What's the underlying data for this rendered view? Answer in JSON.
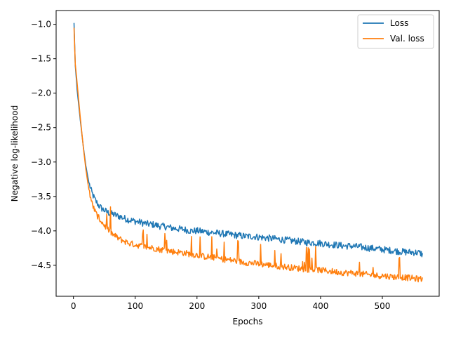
{
  "chart_data": {
    "type": "line",
    "xlabel": "Epochs",
    "ylabel": "Negative log-likelihood",
    "xlim": [
      -28,
      592
    ],
    "ylim": [
      -4.95,
      -0.8
    ],
    "xticks": [
      0,
      100,
      200,
      300,
      400,
      500
    ],
    "yticks": [
      -1.0,
      -1.5,
      -2.0,
      -2.5,
      -3.0,
      -3.5,
      -4.0,
      -4.5
    ],
    "ytick_labels": [
      "−1.0",
      "−1.5",
      "−2.0",
      "−2.5",
      "−3.0",
      "−3.5",
      "−4.0",
      "−4.5"
    ],
    "legend_position": "top-right",
    "grid": false,
    "series": [
      {
        "name": "Loss",
        "color": "#1f77b4",
        "x": [
          1,
          3,
          6,
          10,
          15,
          20,
          25,
          30,
          35,
          40,
          45,
          50,
          55,
          60,
          65,
          70,
          75,
          80,
          90,
          100,
          110,
          120,
          130,
          140,
          150,
          160,
          170,
          180,
          190,
          200,
          210,
          220,
          230,
          240,
          250,
          260,
          270,
          280,
          290,
          300,
          310,
          320,
          330,
          340,
          350,
          360,
          370,
          380,
          390,
          400,
          410,
          420,
          430,
          440,
          450,
          460,
          470,
          480,
          490,
          500,
          510,
          520,
          530,
          540,
          550,
          560,
          565
        ],
        "y": [
          -0.98,
          -1.6,
          -1.95,
          -2.3,
          -2.7,
          -3.05,
          -3.3,
          -3.45,
          -3.55,
          -3.62,
          -3.67,
          -3.7,
          -3.73,
          -3.75,
          -3.76,
          -3.78,
          -3.79,
          -3.81,
          -3.84,
          -3.86,
          -3.88,
          -3.9,
          -3.91,
          -3.93,
          -3.94,
          -3.96,
          -3.97,
          -3.98,
          -4.0,
          -4.0,
          -4.01,
          -4.02,
          -4.03,
          -4.04,
          -4.05,
          -4.06,
          -4.07,
          -4.08,
          -4.08,
          -4.09,
          -4.1,
          -4.11,
          -4.12,
          -4.13,
          -4.14,
          -4.15,
          -4.16,
          -4.17,
          -4.17,
          -4.18,
          -4.19,
          -4.2,
          -4.21,
          -4.22,
          -4.22,
          -4.23,
          -4.24,
          -4.25,
          -4.26,
          -4.27,
          -4.28,
          -4.29,
          -4.3,
          -4.31,
          -4.31,
          -4.32,
          -4.34
        ]
      },
      {
        "name": "Val. loss",
        "color": "#ff7f0e",
        "x": [
          1,
          3,
          6,
          10,
          15,
          20,
          25,
          30,
          35,
          40,
          45,
          50,
          55,
          60,
          65,
          70,
          75,
          80,
          90,
          100,
          110,
          120,
          130,
          140,
          150,
          160,
          170,
          180,
          190,
          200,
          210,
          220,
          230,
          240,
          250,
          260,
          270,
          280,
          290,
          300,
          310,
          320,
          330,
          340,
          350,
          360,
          370,
          380,
          390,
          400,
          410,
          420,
          430,
          440,
          450,
          460,
          470,
          480,
          490,
          500,
          510,
          520,
          530,
          540,
          550,
          560,
          565
        ],
        "y": [
          -1.05,
          -1.58,
          -1.85,
          -2.25,
          -2.7,
          -3.1,
          -3.4,
          -3.6,
          -3.72,
          -3.8,
          -3.86,
          -3.92,
          -3.97,
          -4.02,
          -4.06,
          -4.09,
          -4.12,
          -4.14,
          -4.18,
          -4.2,
          -4.22,
          -4.24,
          -4.25,
          -4.27,
          -4.28,
          -4.3,
          -4.31,
          -4.32,
          -4.34,
          -4.35,
          -4.37,
          -4.38,
          -4.39,
          -4.41,
          -4.42,
          -4.43,
          -4.45,
          -4.46,
          -4.47,
          -4.48,
          -4.49,
          -4.5,
          -4.51,
          -4.52,
          -4.53,
          -4.54,
          -4.55,
          -4.56,
          -4.56,
          -4.57,
          -4.58,
          -4.59,
          -4.6,
          -4.61,
          -4.61,
          -4.62,
          -4.63,
          -4.64,
          -4.65,
          -4.65,
          -4.66,
          -4.67,
          -4.67,
          -4.68,
          -4.69,
          -4.7,
          -4.7
        ]
      }
    ]
  }
}
